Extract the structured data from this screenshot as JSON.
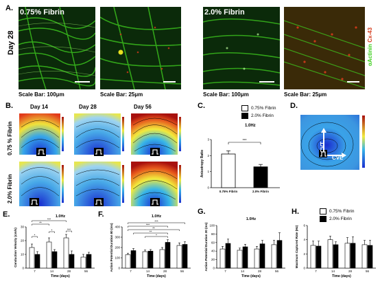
{
  "panels": {
    "A": {
      "label": "A.",
      "day_label": "Day 28",
      "group1_label": "0.75% Fibrin",
      "group2_label": "2.0% Fibrin",
      "scale_100": "Scale Bar: 100μm",
      "scale_25": "Scale Bar: 25μm",
      "stain_green": "αActinin",
      "stain_red": "Cx-43",
      "colors": {
        "green": "#3fcf1f",
        "red": "#d43a1a",
        "background": "#0b2a0a"
      }
    },
    "B": {
      "label": "B.",
      "col_labels": [
        "Day 14",
        "Day 28",
        "Day 56"
      ],
      "row_labels": [
        "0.75 % Fibrin",
        "2.0% Fibrin"
      ]
    },
    "C": {
      "label": "C.",
      "legend": [
        "0.75% Fibrin",
        "2.0% Fibrin"
      ],
      "freq": "1.0Hz",
      "sig": "***"
    },
    "D": {
      "label": "D.",
      "cv_t": "CVT",
      "cv_l": "CVL"
    },
    "E": {
      "label": "E."
    },
    "F": {
      "label": "F."
    },
    "G": {
      "label": "G."
    },
    "H": {
      "label": "H.",
      "legend": [
        "0.75% Fibrin",
        "2.0% Fibrin"
      ]
    }
  },
  "chart_data": [
    {
      "id": "C",
      "type": "bar",
      "title": "1.0Hz",
      "categories": [
        "0.75% Fibrin",
        "2.0% Fibrin"
      ],
      "values": [
        2.1,
        1.3
      ],
      "errors": [
        0.2,
        0.15
      ],
      "colors": [
        "#ffffff",
        "#000000"
      ],
      "ylabel": "Anisotropy Ratio",
      "ylim": [
        0,
        3
      ],
      "yticks": [
        0,
        1,
        2,
        3
      ],
      "annotations": [
        "***"
      ]
    },
    {
      "id": "E",
      "type": "bar",
      "title": "1.0Hz",
      "categories": [
        "7",
        "14",
        "28",
        "56"
      ],
      "xlabel": "Time (days)",
      "ylabel": "Conduction Velocity (cm/s)",
      "ylim": [
        0,
        30
      ],
      "yticks": [
        0,
        10,
        20,
        30
      ],
      "series": [
        {
          "name": "0.75% Fibrin",
          "values": [
            15,
            19,
            22,
            8
          ],
          "errors": [
            2.5,
            3,
            2.5,
            2
          ]
        },
        {
          "name": "2.0% Fibrin",
          "values": [
            10,
            12,
            10,
            10
          ],
          "errors": [
            2,
            1.5,
            2.5,
            1.5
          ]
        }
      ],
      "annotations": [
        "***",
        "**",
        "*",
        "*",
        "***"
      ]
    },
    {
      "id": "F",
      "type": "bar",
      "title": "1.0Hz",
      "categories": [
        "7",
        "14",
        "28",
        "56"
      ],
      "xlabel": "Time (days)",
      "ylabel": "Action Potential Duration 80 (ms)",
      "ylim": [
        0,
        400
      ],
      "yticks": [
        0,
        100,
        200,
        300,
        400
      ],
      "series": [
        {
          "name": "0.75% Fibrin",
          "values": [
            130,
            160,
            180,
            220
          ],
          "errors": [
            15,
            15,
            20,
            25
          ]
        },
        {
          "name": "2.0% Fibrin",
          "values": [
            170,
            165,
            250,
            230
          ],
          "errors": [
            20,
            15,
            25,
            25
          ]
        }
      ],
      "annotations": [
        "***",
        "***",
        "**",
        "**",
        "*"
      ]
    },
    {
      "id": "G",
      "type": "bar",
      "title": "1.0Hz",
      "categories": [
        "7",
        "14",
        "28",
        "56"
      ],
      "xlabel": "Time (days)",
      "ylabel": "Action Potential Duration 30 (ms)",
      "ylim": [
        0,
        100
      ],
      "yticks": [
        0,
        20,
        40,
        60,
        80,
        100
      ],
      "series": [
        {
          "name": "0.75% Fibrin",
          "values": [
            45,
            42,
            45,
            55
          ],
          "errors": [
            6,
            5,
            6,
            10
          ]
        },
        {
          "name": "2.0% Fibrin",
          "values": [
            58,
            50,
            57,
            65
          ],
          "errors": [
            10,
            6,
            8,
            18
          ]
        }
      ]
    },
    {
      "id": "H",
      "type": "bar",
      "categories": [
        "7",
        "14",
        "28",
        "56"
      ],
      "xlabel": "Time (days)",
      "ylabel": "Maximum Captured Rate (Hz)",
      "ylim": [
        0,
        6
      ],
      "yticks": [
        0,
        2,
        4,
        6
      ],
      "series": [
        {
          "name": "0.75% Fibrin",
          "values": [
            3.2,
            4.0,
            3.5,
            3.3
          ],
          "errors": [
            0.6,
            0.5,
            0.8,
            0.6
          ]
        },
        {
          "name": "2.0% Fibrin",
          "values": [
            3.1,
            3.3,
            3.5,
            3.2
          ],
          "errors": [
            0.7,
            0.4,
            0.9,
            0.7
          ]
        }
      ]
    }
  ]
}
